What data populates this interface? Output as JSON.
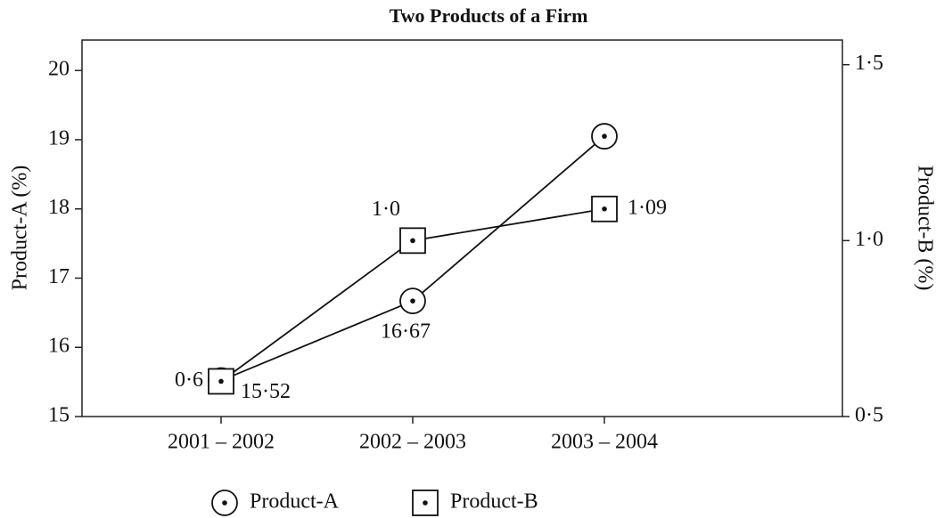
{
  "chart_data": {
    "type": "line",
    "title": "Two Products of a Firm",
    "ylabel": "Product-A (%)",
    "y2label": "Product-B (%)",
    "categories": [
      "2001 – 2002",
      "2002 – 2003",
      "2003 – 2004"
    ],
    "series": [
      {
        "name": "Product-A",
        "color": "#111111",
        "values": [
          15.52,
          16.67,
          19.05
        ],
        "value_labels": [
          "15·52",
          "16·67",
          null
        ],
        "marker": "circle"
      },
      {
        "name": "Product-B",
        "color": "#111111",
        "values": [
          0.6,
          1.0,
          1.09
        ],
        "value_labels": [
          "0·6",
          "1·0",
          "1·09"
        ],
        "marker": "square",
        "axis": "y2"
      }
    ],
    "ylim": [
      15,
      20.44
    ],
    "yticks": [
      15,
      16,
      17,
      18,
      19,
      20
    ],
    "y2lim": [
      0.5,
      1.57
    ],
    "y2ticks": [
      {
        "value": 0.5,
        "label": "0·5"
      },
      {
        "value": 1.0,
        "label": "1·0"
      },
      {
        "value": 1.5,
        "label": "1·5"
      }
    ],
    "legend": "bottom"
  }
}
